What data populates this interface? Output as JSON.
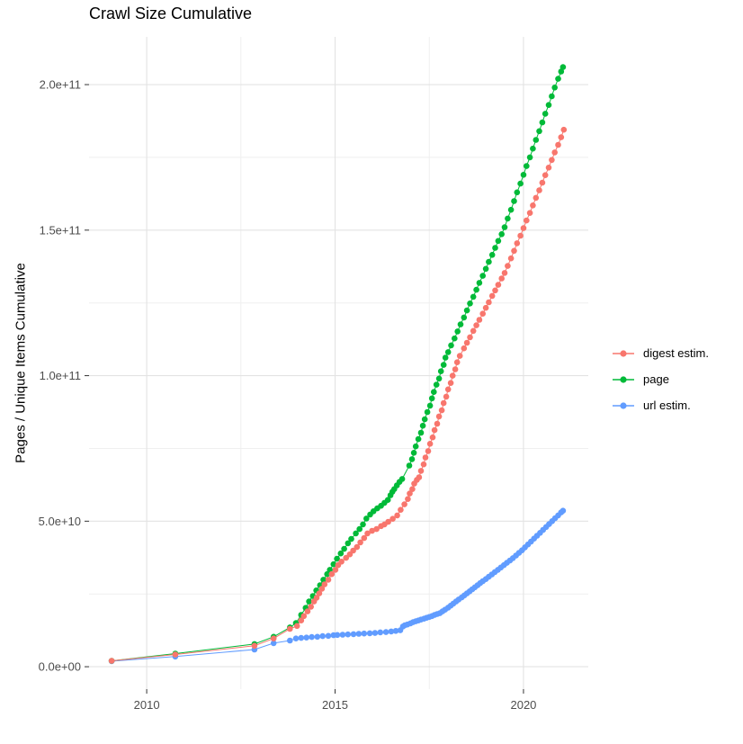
{
  "chart_data": {
    "type": "line",
    "title": "Crawl Size Cumulative",
    "ylabel": "Pages / Unique Items Cumulative",
    "xlabel": "",
    "legend_position": "right",
    "grid": {
      "on": true,
      "major_color": "#e3e3e3",
      "minor_color": "#efefef",
      "tick_color": "#333333",
      "tick_label_color": "#4d4d4d"
    },
    "x_domain": [
      2008.47,
      2021.72
    ],
    "y_domain_billions": [
      -7.7,
      216.4
    ],
    "y_unit_scale": "1e9",
    "x_ticks": [
      {
        "value": 2010,
        "label": "2010"
      },
      {
        "value": 2015,
        "label": "2015"
      },
      {
        "value": 2020,
        "label": "2020"
      }
    ],
    "x_minor": [
      2012.5,
      2017.5
    ],
    "y_ticks": [
      {
        "value_billions": 0,
        "label": "0.0e+00"
      },
      {
        "value_billions": 50,
        "label": "5.0e+10"
      },
      {
        "value_billions": 100,
        "label": "1.0e+11"
      },
      {
        "value_billions": 150,
        "label": "1.5e+11"
      },
      {
        "value_billions": 200,
        "label": "2.0e+11"
      }
    ],
    "y_minor_billions": [
      25,
      75,
      125,
      175
    ],
    "series": [
      {
        "name": "digest estim.",
        "color": "#F8766D",
        "points_year_billions": [
          [
            2009.07,
            2.0
          ],
          [
            2010.76,
            4.2
          ],
          [
            2012.86,
            7.2
          ],
          [
            2013.37,
            9.7
          ],
          [
            2013.8,
            13.0
          ],
          [
            2013.99,
            14.0
          ],
          [
            2014.1,
            15.9
          ],
          [
            2014.17,
            17.4
          ],
          [
            2014.27,
            19.0
          ],
          [
            2014.36,
            20.6
          ],
          [
            2014.44,
            22.4
          ],
          [
            2014.51,
            23.7
          ],
          [
            2014.58,
            25.2
          ],
          [
            2014.65,
            26.8
          ],
          [
            2014.72,
            28.3
          ],
          [
            2014.82,
            29.9
          ],
          [
            2014.91,
            31.8
          ],
          [
            2015.01,
            33.3
          ],
          [
            2015.08,
            34.9
          ],
          [
            2015.17,
            36.1
          ],
          [
            2015.29,
            37.4
          ],
          [
            2015.39,
            38.6
          ],
          [
            2015.48,
            39.9
          ],
          [
            2015.58,
            41.1
          ],
          [
            2015.67,
            42.7
          ],
          [
            2015.77,
            44.2
          ],
          [
            2015.86,
            45.8
          ],
          [
            2015.98,
            46.7
          ],
          [
            2016.1,
            47.3
          ],
          [
            2016.22,
            48.3
          ],
          [
            2016.31,
            48.9
          ],
          [
            2016.41,
            49.8
          ],
          [
            2016.53,
            50.8
          ],
          [
            2016.65,
            52.0
          ],
          [
            2016.74,
            53.9
          ],
          [
            2016.84,
            55.8
          ],
          [
            2016.93,
            57.6
          ],
          [
            2016.98,
            59.5
          ],
          [
            2017.05,
            61.0
          ],
          [
            2017.1,
            62.9
          ],
          [
            2017.17,
            64.2
          ],
          [
            2017.23,
            65.1
          ],
          [
            2017.28,
            67.3
          ],
          [
            2017.35,
            69.5
          ],
          [
            2017.4,
            71.9
          ],
          [
            2017.47,
            74.1
          ],
          [
            2017.52,
            76.6
          ],
          [
            2017.59,
            78.8
          ],
          [
            2017.64,
            81.3
          ],
          [
            2017.71,
            83.5
          ],
          [
            2017.76,
            86.0
          ],
          [
            2017.83,
            88.1
          ],
          [
            2017.88,
            90.6
          ],
          [
            2017.95,
            92.8
          ],
          [
            2018.0,
            95.3
          ],
          [
            2018.07,
            97.5
          ],
          [
            2018.12,
            100.0
          ],
          [
            2018.19,
            102.2
          ],
          [
            2018.24,
            104.6
          ],
          [
            2018.31,
            106.8
          ],
          [
            2018.42,
            109.4
          ],
          [
            2018.5,
            111.3
          ],
          [
            2018.58,
            113.2
          ],
          [
            2018.67,
            115.4
          ],
          [
            2018.75,
            117.3
          ],
          [
            2018.83,
            119.2
          ],
          [
            2018.92,
            121.3
          ],
          [
            2019.0,
            123.3
          ],
          [
            2019.08,
            125.2
          ],
          [
            2019.17,
            127.4
          ],
          [
            2019.25,
            129.3
          ],
          [
            2019.33,
            131.2
          ],
          [
            2019.42,
            133.4
          ],
          [
            2019.5,
            135.3
          ],
          [
            2019.58,
            137.7
          ],
          [
            2019.67,
            140.3
          ],
          [
            2019.75,
            142.9
          ],
          [
            2019.83,
            145.5
          ],
          [
            2019.92,
            148.1
          ],
          [
            2020.0,
            150.7
          ],
          [
            2020.08,
            153.3
          ],
          [
            2020.17,
            155.9
          ],
          [
            2020.25,
            158.5
          ],
          [
            2020.33,
            161.1
          ],
          [
            2020.42,
            163.7
          ],
          [
            2020.5,
            166.3
          ],
          [
            2020.58,
            168.9
          ],
          [
            2020.67,
            171.5
          ],
          [
            2020.75,
            174.1
          ],
          [
            2020.83,
            176.7
          ],
          [
            2020.92,
            179.3
          ],
          [
            2021.0,
            181.9
          ],
          [
            2021.07,
            184.5
          ]
        ]
      },
      {
        "name": "page",
        "color": "#00BA38",
        "points_year_billions": [
          [
            2009.07,
            2.0
          ],
          [
            2010.76,
            4.5
          ],
          [
            2012.86,
            7.8
          ],
          [
            2013.37,
            10.3
          ],
          [
            2013.8,
            13.5
          ],
          [
            2013.96,
            15.0
          ],
          [
            2014.1,
            17.8
          ],
          [
            2014.22,
            20.2
          ],
          [
            2014.31,
            22.4
          ],
          [
            2014.41,
            24.3
          ],
          [
            2014.5,
            26.2
          ],
          [
            2014.6,
            28.0
          ],
          [
            2014.69,
            29.9
          ],
          [
            2014.79,
            31.8
          ],
          [
            2014.86,
            33.3
          ],
          [
            2014.96,
            35.2
          ],
          [
            2015.05,
            37.1
          ],
          [
            2015.15,
            38.9
          ],
          [
            2015.24,
            40.5
          ],
          [
            2015.34,
            42.4
          ],
          [
            2015.43,
            43.9
          ],
          [
            2015.55,
            45.8
          ],
          [
            2015.65,
            47.3
          ],
          [
            2015.74,
            48.9
          ],
          [
            2015.83,
            50.9
          ],
          [
            2015.93,
            52.3
          ],
          [
            2016.02,
            53.4
          ],
          [
            2016.12,
            54.4
          ],
          [
            2016.22,
            55.3
          ],
          [
            2016.31,
            56.3
          ],
          [
            2016.4,
            57.3
          ],
          [
            2016.47,
            58.9
          ],
          [
            2016.52,
            60.1
          ],
          [
            2016.57,
            61.0
          ],
          [
            2016.64,
            62.3
          ],
          [
            2016.71,
            63.5
          ],
          [
            2016.78,
            64.5
          ],
          [
            2016.97,
            69.1
          ],
          [
            2017.04,
            71.3
          ],
          [
            2017.09,
            73.5
          ],
          [
            2017.14,
            75.7
          ],
          [
            2017.21,
            78.2
          ],
          [
            2017.28,
            80.4
          ],
          [
            2017.33,
            82.8
          ],
          [
            2017.38,
            85.0
          ],
          [
            2017.45,
            87.5
          ],
          [
            2017.52,
            89.7
          ],
          [
            2017.57,
            92.2
          ],
          [
            2017.62,
            94.4
          ],
          [
            2017.69,
            96.9
          ],
          [
            2017.76,
            99.0
          ],
          [
            2017.81,
            101.5
          ],
          [
            2017.88,
            103.7
          ],
          [
            2017.93,
            106.2
          ],
          [
            2018.0,
            108.1
          ],
          [
            2018.08,
            110.4
          ],
          [
            2018.17,
            112.8
          ],
          [
            2018.25,
            115.2
          ],
          [
            2018.33,
            117.6
          ],
          [
            2018.42,
            120.0
          ],
          [
            2018.5,
            122.4
          ],
          [
            2018.58,
            124.8
          ],
          [
            2018.67,
            127.1
          ],
          [
            2018.75,
            129.5
          ],
          [
            2018.83,
            131.9
          ],
          [
            2018.92,
            134.3
          ],
          [
            2019.0,
            136.7
          ],
          [
            2019.08,
            139.1
          ],
          [
            2019.17,
            141.5
          ],
          [
            2019.25,
            143.9
          ],
          [
            2019.33,
            146.3
          ],
          [
            2019.42,
            148.6
          ],
          [
            2019.5,
            151.0
          ],
          [
            2019.58,
            154.0
          ],
          [
            2019.67,
            157.0
          ],
          [
            2019.75,
            160.0
          ],
          [
            2019.83,
            163.0
          ],
          [
            2019.92,
            166.0
          ],
          [
            2020.0,
            169.0
          ],
          [
            2020.08,
            172.0
          ],
          [
            2020.17,
            175.0
          ],
          [
            2020.25,
            178.0
          ],
          [
            2020.33,
            181.0
          ],
          [
            2020.42,
            184.0
          ],
          [
            2020.5,
            187.0
          ],
          [
            2020.58,
            190.0
          ],
          [
            2020.67,
            193.0
          ],
          [
            2020.75,
            196.0
          ],
          [
            2020.83,
            199.0
          ],
          [
            2020.92,
            202.0
          ],
          [
            2021.0,
            204.5
          ],
          [
            2021.05,
            206.0
          ]
        ]
      },
      {
        "name": "url estim.",
        "color": "#619CFF",
        "points_year_billions": [
          [
            2009.07,
            1.9
          ],
          [
            2010.76,
            3.5
          ],
          [
            2012.86,
            5.9
          ],
          [
            2013.37,
            8.1
          ],
          [
            2013.8,
            9.0
          ],
          [
            2013.96,
            9.7
          ],
          [
            2014.1,
            9.9
          ],
          [
            2014.24,
            10.0
          ],
          [
            2014.38,
            10.2
          ],
          [
            2014.53,
            10.3
          ],
          [
            2014.67,
            10.5
          ],
          [
            2014.82,
            10.6
          ],
          [
            2014.96,
            10.8
          ],
          [
            2015.06,
            10.9
          ],
          [
            2015.2,
            11.0
          ],
          [
            2015.34,
            11.1
          ],
          [
            2015.49,
            11.2
          ],
          [
            2015.63,
            11.3
          ],
          [
            2015.77,
            11.4
          ],
          [
            2015.92,
            11.5
          ],
          [
            2016.06,
            11.6
          ],
          [
            2016.2,
            11.8
          ],
          [
            2016.35,
            11.9
          ],
          [
            2016.49,
            12.1
          ],
          [
            2016.61,
            12.3
          ],
          [
            2016.73,
            12.5
          ],
          [
            2016.8,
            13.8
          ],
          [
            2016.85,
            14.2
          ],
          [
            2016.92,
            14.5
          ],
          [
            2017.0,
            14.9
          ],
          [
            2017.07,
            15.3
          ],
          [
            2017.14,
            15.6
          ],
          [
            2017.21,
            15.9
          ],
          [
            2017.28,
            16.2
          ],
          [
            2017.36,
            16.5
          ],
          [
            2017.43,
            16.8
          ],
          [
            2017.5,
            17.1
          ],
          [
            2017.57,
            17.4
          ],
          [
            2017.64,
            17.8
          ],
          [
            2017.71,
            18.1
          ],
          [
            2017.78,
            18.4
          ],
          [
            2017.85,
            19.0
          ],
          [
            2017.92,
            19.6
          ],
          [
            2018.0,
            20.3
          ],
          [
            2018.07,
            21.0
          ],
          [
            2018.14,
            21.7
          ],
          [
            2018.21,
            22.4
          ],
          [
            2018.28,
            23.1
          ],
          [
            2018.36,
            23.8
          ],
          [
            2018.43,
            24.5
          ],
          [
            2018.5,
            25.2
          ],
          [
            2018.57,
            25.9
          ],
          [
            2018.64,
            26.6
          ],
          [
            2018.71,
            27.3
          ],
          [
            2018.78,
            28.0
          ],
          [
            2018.85,
            28.7
          ],
          [
            2018.92,
            29.4
          ],
          [
            2019.0,
            30.1
          ],
          [
            2019.08,
            30.9
          ],
          [
            2019.16,
            31.7
          ],
          [
            2019.24,
            32.5
          ],
          [
            2019.32,
            33.3
          ],
          [
            2019.4,
            34.1
          ],
          [
            2019.48,
            34.9
          ],
          [
            2019.56,
            35.7
          ],
          [
            2019.64,
            36.5
          ],
          [
            2019.72,
            37.3
          ],
          [
            2019.8,
            38.2
          ],
          [
            2019.88,
            39.1
          ],
          [
            2019.96,
            40.0
          ],
          [
            2020.04,
            41.0
          ],
          [
            2020.12,
            42.0
          ],
          [
            2020.2,
            43.0
          ],
          [
            2020.28,
            44.0
          ],
          [
            2020.36,
            45.0
          ],
          [
            2020.44,
            46.0
          ],
          [
            2020.52,
            47.0
          ],
          [
            2020.6,
            48.0
          ],
          [
            2020.68,
            49.0
          ],
          [
            2020.76,
            50.0
          ],
          [
            2020.84,
            51.0
          ],
          [
            2020.92,
            52.0
          ],
          [
            2021.0,
            53.0
          ],
          [
            2021.05,
            53.6
          ]
        ]
      }
    ]
  }
}
